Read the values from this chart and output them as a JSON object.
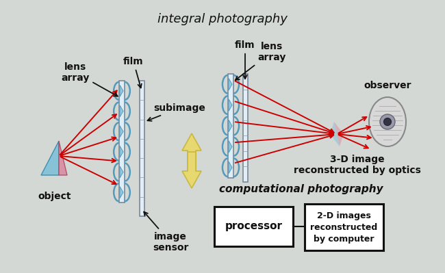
{
  "bg_color": "#d4d8d4",
  "title_integral": "integral photography",
  "title_computational": "computational photography",
  "label_object": "object",
  "label_lens_array_left": "lens\narray",
  "label_film_left": "film",
  "label_subimage": "subimage",
  "label_image_sensor": "image\nsensor",
  "label_film_right": "film",
  "label_lens_array_right": "lens\narray",
  "label_observer": "observer",
  "label_3d": "3-D image\nreconstructed by optics",
  "label_processor": "processor",
  "label_2d": "2-D images\nreconstructed\nby computer",
  "red_color": "#cc0000",
  "black_color": "#111111",
  "arrow_fill": "#e8d870",
  "arrow_edge": "#c8b840",
  "lens_color": "#90c8e0",
  "lens_accent": "#5599bb",
  "prism_blue": "#80c0d8",
  "prism_pink": "#d888a0",
  "box_color": "#ffffff",
  "box_edge": "#111111"
}
